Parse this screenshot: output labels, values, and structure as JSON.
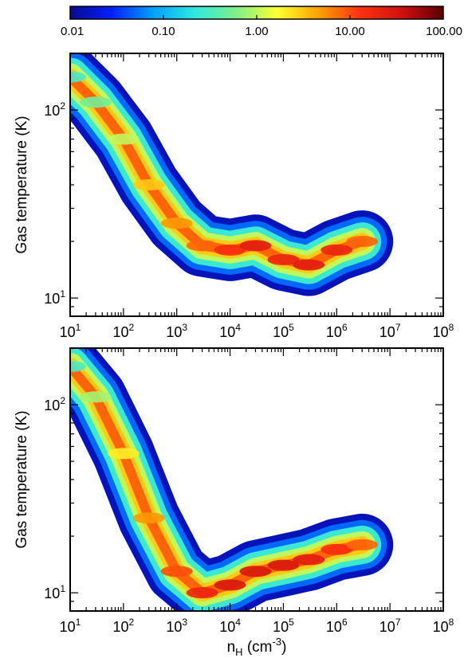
{
  "colorbar": {
    "scale": "log",
    "range": [
      0.01,
      100.0
    ],
    "tick_labels": [
      "0.01",
      "0.10",
      "1.00",
      "10.00",
      "100.00"
    ],
    "tick_values": [
      0.01,
      0.1,
      1.0,
      10.0,
      100.0
    ],
    "colormap": "rainbow",
    "stops": [
      "#0a0a8c",
      "#0020ff",
      "#00a0ff",
      "#30e8e0",
      "#7ef08a",
      "#ffff30",
      "#ffa000",
      "#ff3010",
      "#d01010",
      "#5a0000"
    ]
  },
  "chart_data": [
    {
      "type": "heatmap",
      "panel": "top",
      "xlabel": "",
      "ylabel": "Gas temperature (K)",
      "xscale": "log",
      "yscale": "log",
      "xlim": [
        10,
        100000000
      ],
      "ylim": [
        8,
        200
      ],
      "x_tick_labels": [
        "10",
        "10",
        "10",
        "10",
        "10",
        "10",
        "10",
        "10"
      ],
      "x_tick_exponents": [
        "1",
        "2",
        "3",
        "4",
        "5",
        "6",
        "7",
        "8"
      ],
      "y_tick_labels": [
        "10",
        "10"
      ],
      "y_tick_exponents": [
        "1",
        "2"
      ],
      "ridge": [
        {
          "nH": 10,
          "T": 150,
          "value": 0.3
        },
        {
          "nH": 30,
          "T": 110,
          "value": 0.5
        },
        {
          "nH": 100,
          "T": 70,
          "value": 1.0
        },
        {
          "nH": 300,
          "T": 40,
          "value": 3.0
        },
        {
          "nH": 1000,
          "T": 25,
          "value": 5.0
        },
        {
          "nH": 3000,
          "T": 19,
          "value": 8.0
        },
        {
          "nH": 10000,
          "T": 18,
          "value": 15.0
        },
        {
          "nH": 30000,
          "T": 19,
          "value": 25.0
        },
        {
          "nH": 100000,
          "T": 16,
          "value": 20.0
        },
        {
          "nH": 300000,
          "T": 15,
          "value": 25.0
        },
        {
          "nH": 1000000,
          "T": 18,
          "value": 20.0
        },
        {
          "nH": 3000000,
          "T": 20,
          "value": 8.0
        }
      ]
    },
    {
      "type": "heatmap",
      "panel": "bottom",
      "xlabel": "n",
      "xlabel_sub": "H",
      "xlabel_units": " (cm",
      "xlabel_sup": "-3",
      "xlabel_end": ")",
      "ylabel": "Gas temperature (K)",
      "xscale": "log",
      "yscale": "log",
      "xlim": [
        10,
        100000000
      ],
      "ylim": [
        8,
        200
      ],
      "x_tick_labels": [
        "10",
        "10",
        "10",
        "10",
        "10",
        "10",
        "10",
        "10"
      ],
      "x_tick_exponents": [
        "1",
        "2",
        "3",
        "4",
        "5",
        "6",
        "7",
        "8"
      ],
      "y_tick_labels": [
        "10",
        "10"
      ],
      "y_tick_exponents": [
        "1",
        "2"
      ],
      "ridge": [
        {
          "nH": 10,
          "T": 160,
          "value": 0.3
        },
        {
          "nH": 30,
          "T": 110,
          "value": 0.8
        },
        {
          "nH": 100,
          "T": 55,
          "value": 2.0
        },
        {
          "nH": 300,
          "T": 25,
          "value": 5.0
        },
        {
          "nH": 1000,
          "T": 13,
          "value": 10.0
        },
        {
          "nH": 3000,
          "T": 10,
          "value": 20.0
        },
        {
          "nH": 10000,
          "T": 11,
          "value": 30.0
        },
        {
          "nH": 30000,
          "T": 13,
          "value": 30.0
        },
        {
          "nH": 100000,
          "T": 14,
          "value": 30.0
        },
        {
          "nH": 300000,
          "T": 15,
          "value": 25.0
        },
        {
          "nH": 1000000,
          "T": 17,
          "value": 15.0
        },
        {
          "nH": 3000000,
          "T": 18,
          "value": 8.0
        }
      ]
    }
  ]
}
